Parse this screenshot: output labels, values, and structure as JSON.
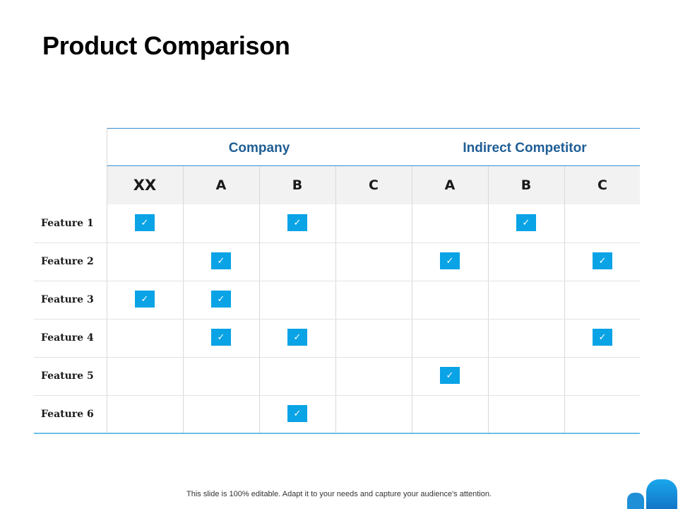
{
  "title": "Product Comparison",
  "groups": [
    {
      "label": "Company"
    },
    {
      "label": "Indirect Competitor"
    }
  ],
  "columns": [
    "XX",
    "A",
    "B",
    "C",
    "A",
    "B",
    "C"
  ],
  "features": [
    {
      "label": "Feature 1",
      "checks": [
        true,
        false,
        true,
        false,
        false,
        true,
        false
      ]
    },
    {
      "label": "Feature 2",
      "checks": [
        false,
        true,
        false,
        false,
        true,
        false,
        true
      ]
    },
    {
      "label": "Feature 3",
      "checks": [
        true,
        true,
        false,
        false,
        false,
        false,
        false
      ]
    },
    {
      "label": "Feature 4",
      "checks": [
        false,
        true,
        true,
        false,
        false,
        false,
        true
      ]
    },
    {
      "label": "Feature 5",
      "checks": [
        false,
        false,
        false,
        false,
        true,
        false,
        false
      ]
    },
    {
      "label": "Feature 6",
      "checks": [
        false,
        false,
        true,
        false,
        false,
        false,
        false
      ]
    }
  ],
  "check_glyph": "✓",
  "check_icon": "checkmark-icon",
  "accent_color": "#0aa3e6",
  "group_label_color": "#1f5e95",
  "footer": "This slide is 100% editable. Adapt it to your needs and capture your audience's attention."
}
